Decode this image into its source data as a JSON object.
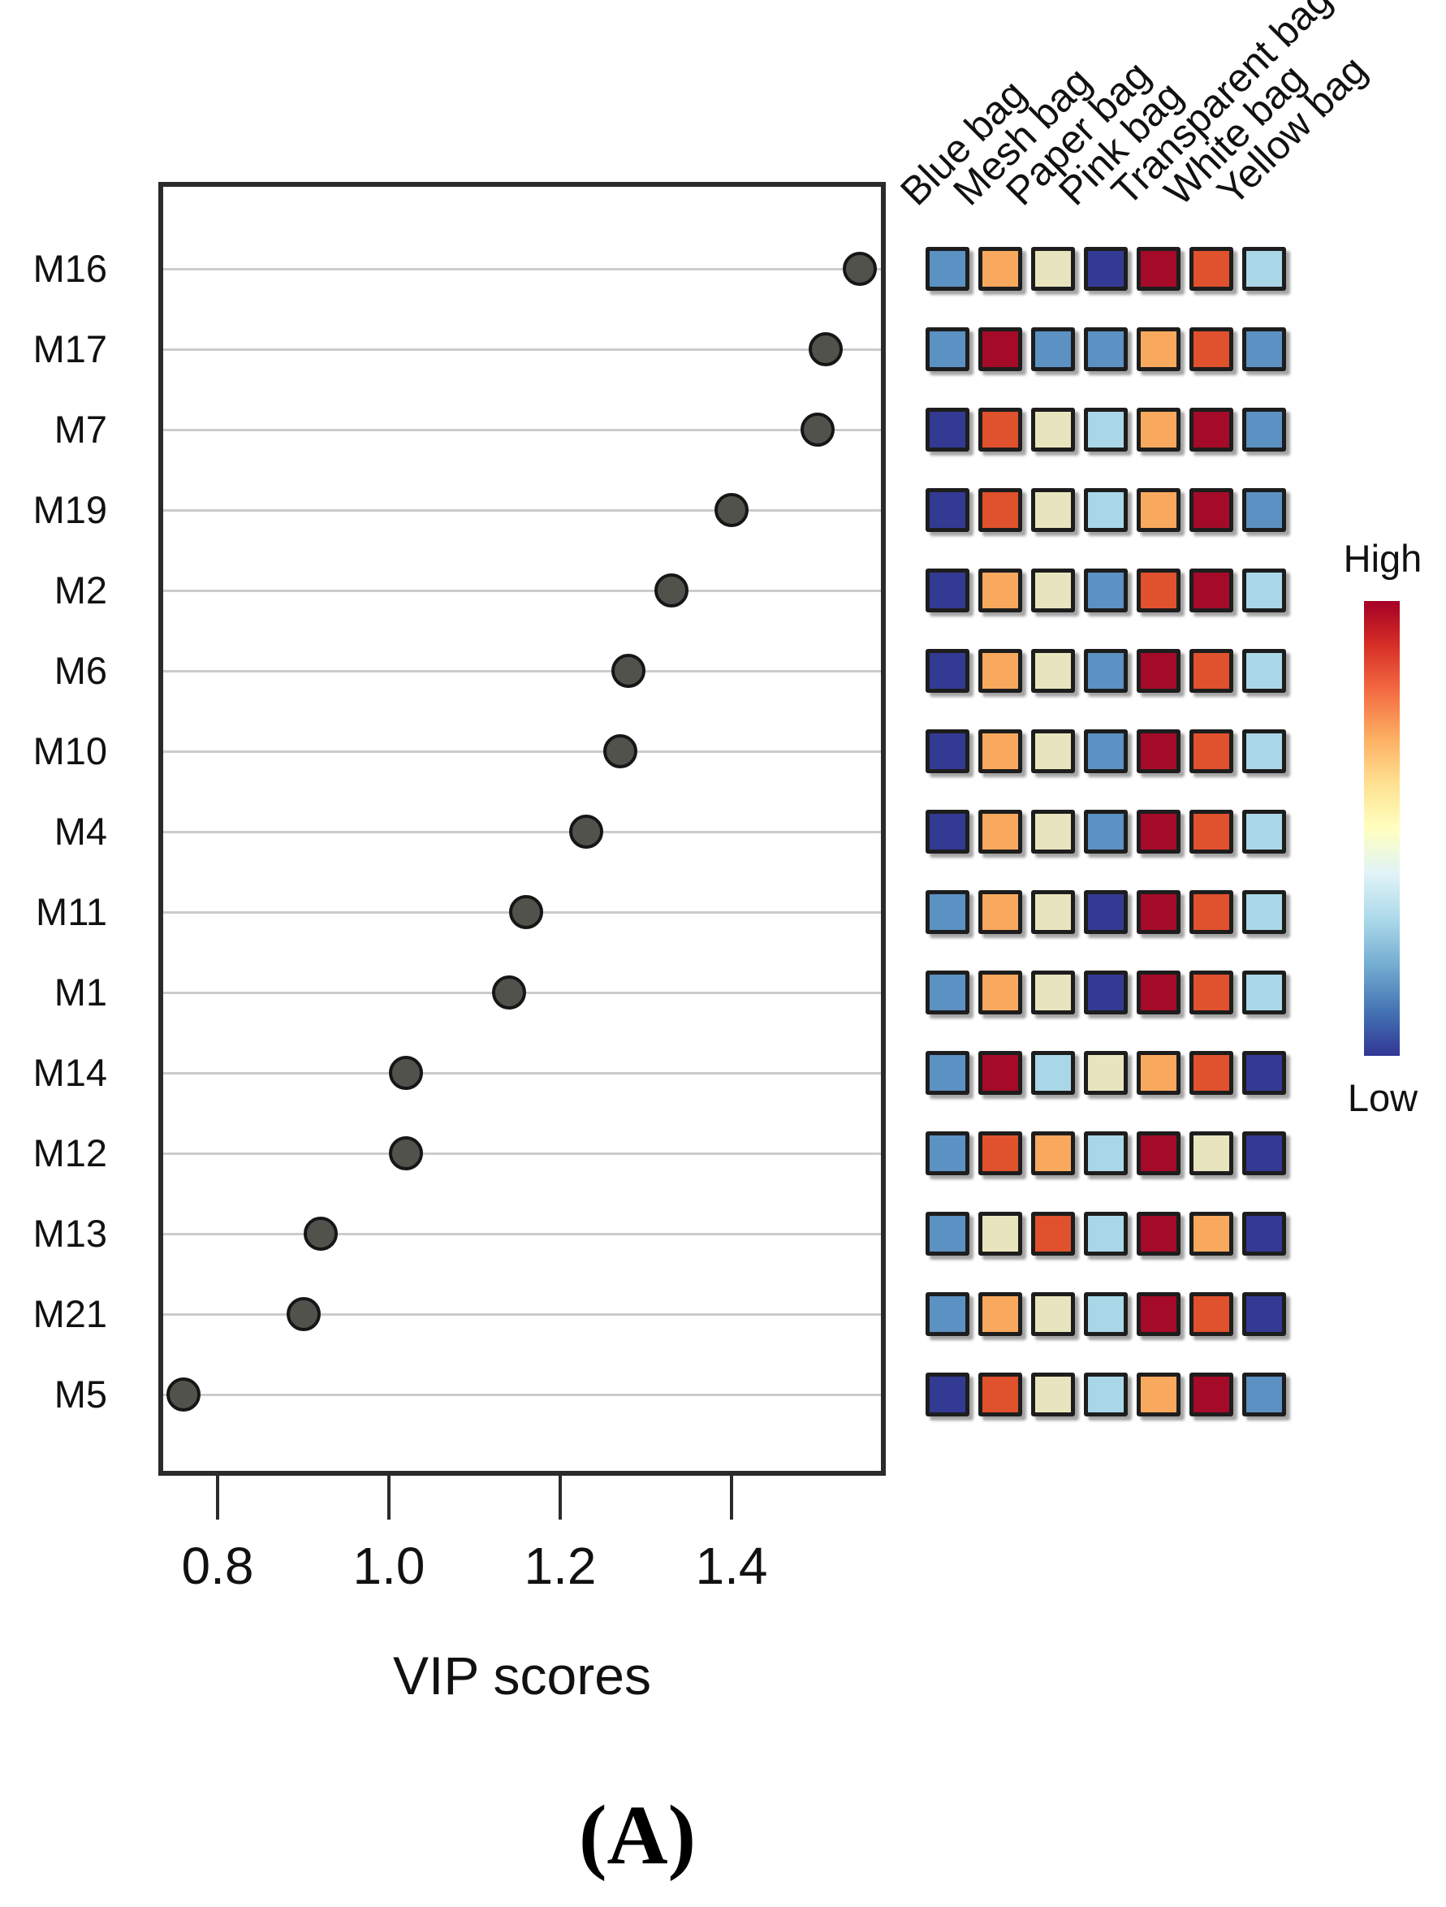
{
  "panel_label": "(A)",
  "x_axis": {
    "label": "VIP scores",
    "ticks": [
      "0.8",
      "1.0",
      "1.2",
      "1.4"
    ]
  },
  "colorbar": {
    "high_label": "High",
    "low_label": "Low",
    "gradient": [
      "#A50026",
      "#D73027",
      "#F46D43",
      "#FDAE61",
      "#FEE090",
      "#FFFFBF",
      "#E0F3F8",
      "#ABD9E9",
      "#74ADD1",
      "#4575B4",
      "#313695"
    ]
  },
  "palette": {
    "navy": "#333A94",
    "blue": "#5B91C3",
    "lightblue": "#AAD7E8",
    "cream": "#E8E5BE",
    "orange": "#F9A95D",
    "orangered": "#E0512D",
    "darkred": "#A50B28"
  },
  "chart_data": [
    {
      "type": "scatter",
      "title": "VIP scores dot plot",
      "xlabel": "VIP scores",
      "ylabel": "",
      "x_ticks": [
        0.8,
        1.0,
        1.2,
        1.4
      ],
      "xlim": [
        0.73,
        1.58
      ],
      "grid": "horizontal gridline per category",
      "legend_position": "none",
      "categories": [
        "M16",
        "M17",
        "M7",
        "M19",
        "M2",
        "M6",
        "M10",
        "M4",
        "M11",
        "M1",
        "M14",
        "M12",
        "M13",
        "M21",
        "M5"
      ],
      "values": [
        1.55,
        1.51,
        1.5,
        1.4,
        1.33,
        1.28,
        1.27,
        1.23,
        1.16,
        1.14,
        1.02,
        1.02,
        0.92,
        0.9,
        0.76
      ]
    },
    {
      "type": "heatmap",
      "title": "Relative abundance heatmap (categorical RdYlBu levels, High to Low)",
      "columns": [
        "Blue bag",
        "Mesh bag",
        "Paper bag",
        "Pink bag",
        "Transparent bag",
        "White bag",
        "Yellow bag"
      ],
      "rows": [
        "M16",
        "M17",
        "M7",
        "M19",
        "M2",
        "M6",
        "M10",
        "M4",
        "M11",
        "M1",
        "M14",
        "M12",
        "M13",
        "M21",
        "M5"
      ],
      "cells": [
        [
          "blue",
          "orange",
          "cream",
          "navy",
          "darkred",
          "orangered",
          "lightblue"
        ],
        [
          "blue",
          "darkred",
          "blue",
          "blue",
          "orange",
          "orangered",
          "blue"
        ],
        [
          "navy",
          "orangered",
          "cream",
          "lightblue",
          "orange",
          "darkred",
          "blue"
        ],
        [
          "navy",
          "orangered",
          "cream",
          "lightblue",
          "orange",
          "darkred",
          "blue"
        ],
        [
          "navy",
          "orange",
          "cream",
          "blue",
          "orangered",
          "darkred",
          "lightblue"
        ],
        [
          "navy",
          "orange",
          "cream",
          "blue",
          "darkred",
          "orangered",
          "lightblue"
        ],
        [
          "navy",
          "orange",
          "cream",
          "blue",
          "darkred",
          "orangered",
          "lightblue"
        ],
        [
          "navy",
          "orange",
          "cream",
          "blue",
          "darkred",
          "orangered",
          "lightblue"
        ],
        [
          "blue",
          "orange",
          "cream",
          "navy",
          "darkred",
          "orangered",
          "lightblue"
        ],
        [
          "blue",
          "orange",
          "cream",
          "navy",
          "darkred",
          "orangered",
          "lightblue"
        ],
        [
          "blue",
          "darkred",
          "lightblue",
          "cream",
          "orange",
          "orangered",
          "navy"
        ],
        [
          "blue",
          "orangered",
          "orange",
          "lightblue",
          "darkred",
          "cream",
          "navy"
        ],
        [
          "blue",
          "cream",
          "orangered",
          "lightblue",
          "darkred",
          "orange",
          "navy"
        ],
        [
          "blue",
          "orange",
          "cream",
          "lightblue",
          "darkred",
          "orangered",
          "navy"
        ],
        [
          "navy",
          "orangered",
          "cream",
          "lightblue",
          "orange",
          "darkred",
          "blue"
        ]
      ],
      "legend": {
        "high": "High",
        "low": "Low"
      }
    }
  ]
}
